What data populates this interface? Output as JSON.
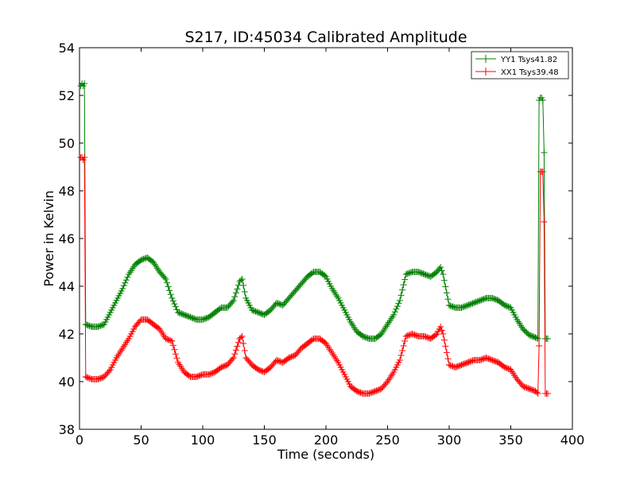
{
  "chart_data": {
    "type": "line",
    "title": "S217, ID:45034 Calibrated Amplitude",
    "xlabel": "Time (seconds)",
    "ylabel": "Power in Kelvin",
    "xlim": [
      0,
      400
    ],
    "ylim": [
      38,
      54
    ],
    "xticks": [
      0,
      50,
      100,
      150,
      200,
      250,
      300,
      350,
      400
    ],
    "yticks": [
      38,
      40,
      42,
      44,
      46,
      48,
      50,
      52,
      54
    ],
    "grid": false,
    "legend_position": "top-right",
    "marker": "plus",
    "series": [
      {
        "name": "YY1 Tsys41.82",
        "color": "#008000",
        "x": [
          1,
          2,
          3,
          4,
          5,
          10,
          15,
          20,
          25,
          30,
          35,
          40,
          45,
          50,
          55,
          60,
          65,
          70,
          75,
          80,
          85,
          90,
          95,
          100,
          105,
          110,
          115,
          120,
          125,
          130,
          132,
          135,
          140,
          145,
          150,
          155,
          160,
          165,
          170,
          175,
          180,
          185,
          190,
          195,
          200,
          205,
          210,
          215,
          220,
          225,
          230,
          235,
          240,
          245,
          250,
          255,
          260,
          265,
          270,
          275,
          280,
          285,
          290,
          293,
          295,
          300,
          305,
          310,
          315,
          320,
          325,
          330,
          335,
          340,
          345,
          350,
          355,
          360,
          365,
          370,
          372,
          373,
          374,
          375,
          376,
          377,
          378,
          380
        ],
        "y": [
          52.4,
          52.5,
          52.4,
          52.5,
          42.4,
          42.3,
          42.3,
          42.4,
          42.9,
          43.4,
          43.9,
          44.5,
          44.9,
          45.1,
          45.2,
          45.0,
          44.6,
          44.3,
          43.5,
          42.9,
          42.8,
          42.7,
          42.6,
          42.6,
          42.7,
          42.9,
          43.1,
          43.1,
          43.4,
          44.2,
          44.3,
          43.5,
          43.0,
          42.9,
          42.8,
          43.0,
          43.3,
          43.2,
          43.5,
          43.8,
          44.1,
          44.4,
          44.6,
          44.6,
          44.4,
          43.9,
          43.5,
          43.0,
          42.5,
          42.1,
          41.9,
          41.8,
          41.8,
          42.0,
          42.4,
          42.8,
          43.4,
          44.5,
          44.6,
          44.6,
          44.5,
          44.4,
          44.6,
          44.8,
          44.5,
          43.2,
          43.1,
          43.1,
          43.2,
          43.3,
          43.4,
          43.5,
          43.5,
          43.4,
          43.2,
          43.1,
          42.6,
          42.2,
          41.95,
          41.85,
          41.8,
          51.8,
          51.9,
          51.9,
          51.8,
          49.6,
          41.8,
          41.8
        ]
      },
      {
        "name": "XX1 Tsys39.48",
        "color": "#ff0000",
        "x": [
          1,
          2,
          3,
          4,
          5,
          10,
          15,
          20,
          25,
          30,
          35,
          40,
          45,
          50,
          55,
          60,
          65,
          70,
          75,
          80,
          85,
          90,
          95,
          100,
          105,
          110,
          115,
          120,
          125,
          130,
          132,
          135,
          140,
          145,
          150,
          155,
          160,
          165,
          170,
          175,
          180,
          185,
          190,
          195,
          200,
          205,
          210,
          215,
          220,
          225,
          230,
          235,
          240,
          245,
          250,
          255,
          260,
          265,
          270,
          275,
          280,
          285,
          290,
          293,
          295,
          300,
          305,
          310,
          315,
          320,
          325,
          330,
          335,
          340,
          345,
          350,
          355,
          360,
          365,
          370,
          372,
          373,
          374,
          375,
          376,
          377,
          378,
          380
        ],
        "y": [
          49.4,
          49.4,
          49.3,
          49.4,
          40.2,
          40.1,
          40.1,
          40.2,
          40.5,
          41.0,
          41.4,
          41.8,
          42.3,
          42.6,
          42.6,
          42.4,
          42.2,
          41.8,
          41.7,
          40.8,
          40.4,
          40.2,
          40.2,
          40.3,
          40.3,
          40.4,
          40.6,
          40.7,
          41.0,
          41.8,
          41.9,
          41.0,
          40.7,
          40.5,
          40.4,
          40.6,
          40.9,
          40.8,
          41.0,
          41.1,
          41.4,
          41.6,
          41.8,
          41.8,
          41.6,
          41.2,
          40.8,
          40.3,
          39.8,
          39.6,
          39.5,
          39.5,
          39.6,
          39.7,
          40.0,
          40.4,
          40.9,
          41.9,
          42.0,
          41.9,
          41.9,
          41.8,
          42.0,
          42.3,
          42.0,
          40.7,
          40.6,
          40.7,
          40.8,
          40.9,
          40.9,
          41.0,
          40.9,
          40.8,
          40.6,
          40.5,
          40.1,
          39.8,
          39.7,
          39.6,
          39.5,
          41.5,
          48.8,
          48.8,
          48.8,
          46.7,
          39.5,
          39.5
        ]
      }
    ]
  }
}
